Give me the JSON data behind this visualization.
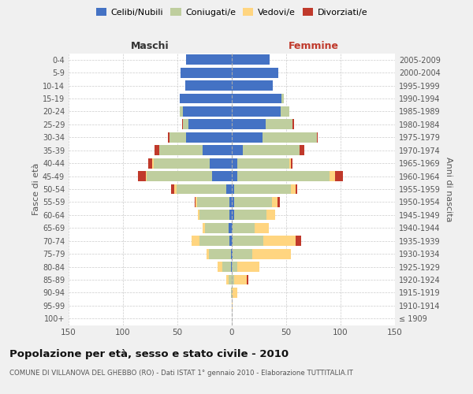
{
  "age_groups": [
    "100+",
    "95-99",
    "90-94",
    "85-89",
    "80-84",
    "75-79",
    "70-74",
    "65-69",
    "60-64",
    "55-59",
    "50-54",
    "45-49",
    "40-44",
    "35-39",
    "30-34",
    "25-29",
    "20-24",
    "15-19",
    "10-14",
    "5-9",
    "0-4"
  ],
  "birth_years": [
    "≤ 1909",
    "1910-1914",
    "1915-1919",
    "1920-1924",
    "1925-1929",
    "1930-1934",
    "1935-1939",
    "1940-1944",
    "1945-1949",
    "1950-1954",
    "1955-1959",
    "1960-1964",
    "1965-1969",
    "1970-1974",
    "1975-1979",
    "1980-1984",
    "1985-1989",
    "1990-1994",
    "1995-1999",
    "2000-2004",
    "2005-2009"
  ],
  "male": {
    "celibi": [
      0,
      0,
      0,
      0,
      1,
      1,
      2,
      3,
      2,
      2,
      5,
      18,
      20,
      27,
      42,
      40,
      45,
      48,
      43,
      47,
      42
    ],
    "coniugati": [
      0,
      0,
      1,
      3,
      8,
      20,
      28,
      22,
      28,
      30,
      46,
      60,
      52,
      40,
      15,
      5,
      3,
      0,
      0,
      0,
      0
    ],
    "vedovi": [
      0,
      0,
      0,
      2,
      4,
      2,
      7,
      2,
      1,
      1,
      2,
      1,
      1,
      0,
      0,
      0,
      0,
      0,
      0,
      0,
      0
    ],
    "divorziati": [
      0,
      0,
      0,
      0,
      0,
      0,
      0,
      0,
      0,
      1,
      3,
      7,
      4,
      4,
      2,
      1,
      0,
      0,
      0,
      0,
      0
    ]
  },
  "female": {
    "nubili": [
      0,
      0,
      0,
      0,
      0,
      1,
      1,
      1,
      2,
      2,
      2,
      5,
      5,
      10,
      28,
      31,
      45,
      46,
      38,
      43,
      35
    ],
    "coniugate": [
      0,
      0,
      0,
      2,
      5,
      18,
      28,
      20,
      30,
      35,
      52,
      85,
      48,
      52,
      50,
      25,
      8,
      2,
      0,
      0,
      0
    ],
    "vedove": [
      0,
      1,
      5,
      12,
      20,
      35,
      30,
      13,
      8,
      5,
      5,
      5,
      1,
      0,
      0,
      0,
      0,
      0,
      0,
      0,
      0
    ],
    "divorziate": [
      0,
      0,
      0,
      1,
      0,
      0,
      5,
      0,
      0,
      2,
      1,
      7,
      2,
      5,
      1,
      1,
      0,
      0,
      0,
      0,
      0
    ]
  },
  "colors": {
    "celibi_nubili": "#4472C4",
    "coniugati": "#BFCE9E",
    "vedovi": "#FFD580",
    "divorziati": "#C0392B"
  },
  "title": "Popolazione per età, sesso e stato civile - 2010",
  "subtitle": "COMUNE DI VILLANOVA DEL GHEBBO (RO) - Dati ISTAT 1° gennaio 2010 - Elaborazione TUTTITALIA.IT",
  "ylabel_left": "Fasce di età",
  "ylabel_right": "Anni di nascita",
  "xlabel_left": "Maschi",
  "xlabel_right": "Femmine",
  "xlim": 150,
  "bg_color": "#f0f0f0",
  "plot_bg": "#ffffff"
}
